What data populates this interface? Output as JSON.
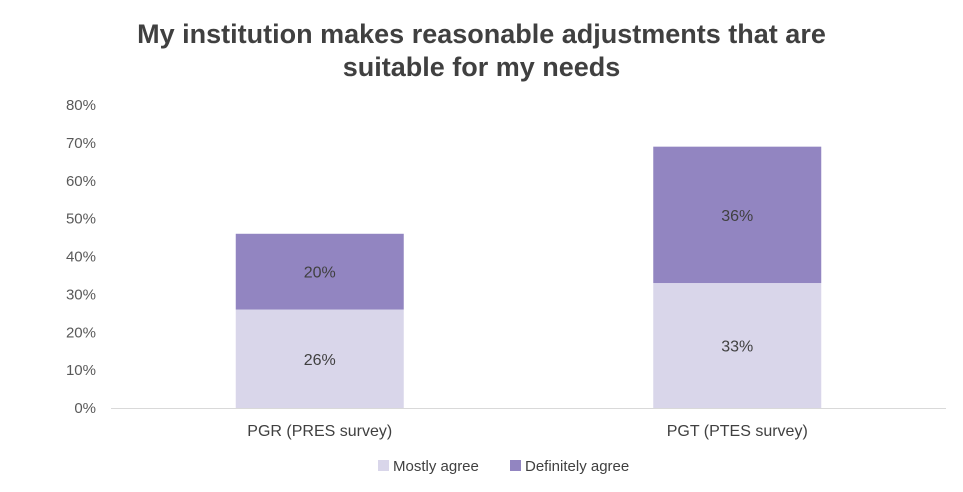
{
  "chart_data": {
    "type": "bar",
    "stacked": true,
    "title_lines": [
      "My institution makes reasonable adjustments that are",
      "suitable for my needs"
    ],
    "categories": [
      "PGR (PRES survey)",
      "PGT (PTES survey)"
    ],
    "series": [
      {
        "name": "Mostly agree",
        "values": [
          26,
          33
        ],
        "labels": [
          "26%",
          "33%"
        ],
        "color": "#d9d6ea"
      },
      {
        "name": "Definitely agree",
        "values": [
          20,
          36
        ],
        "labels": [
          "20%",
          "36%"
        ],
        "color": "#9285c1"
      }
    ],
    "ylim": [
      0,
      80
    ],
    "yticks": [
      "0%",
      "10%",
      "20%",
      "30%",
      "40%",
      "50%",
      "60%",
      "70%",
      "80%"
    ],
    "grid": false,
    "legend_position": "bottom"
  }
}
